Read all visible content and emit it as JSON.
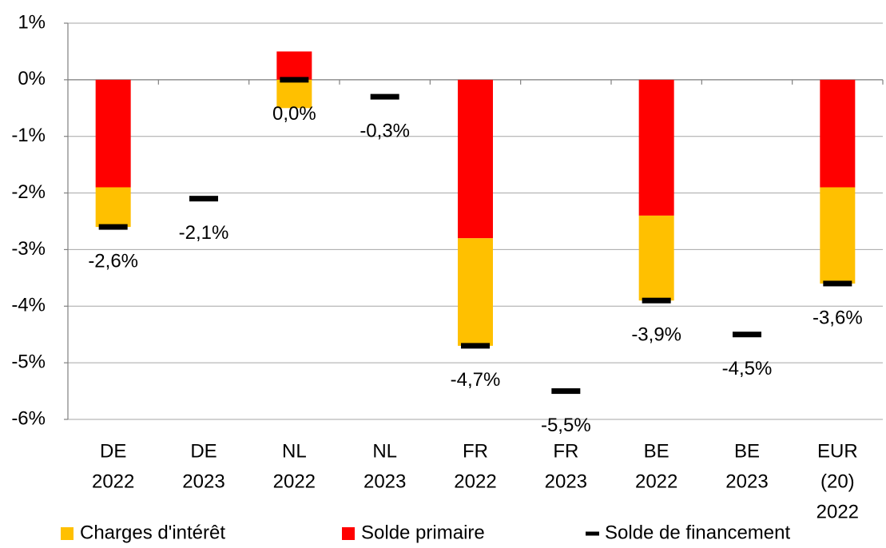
{
  "chart_data": {
    "type": "bar",
    "categories": [
      [
        "DE",
        "2022"
      ],
      [
        "DE",
        "2023"
      ],
      [
        "NL",
        "2022"
      ],
      [
        "NL",
        "2023"
      ],
      [
        "FR",
        "2022"
      ],
      [
        "FR",
        "2023"
      ],
      [
        "BE",
        "2022"
      ],
      [
        "BE",
        "2023"
      ],
      [
        "EUR",
        "(20)",
        "2022"
      ]
    ],
    "series": [
      {
        "name": "Charges d'intérêt",
        "color": "#ffc000",
        "values": [
          -0.7,
          null,
          -0.5,
          null,
          -1.9,
          null,
          -1.5,
          null,
          -1.7
        ]
      },
      {
        "name": "Solde primaire",
        "color": "#ff0000",
        "values": [
          -1.9,
          null,
          0.5,
          null,
          -2.8,
          null,
          -2.4,
          null,
          -1.9
        ]
      },
      {
        "name": "Solde de financement",
        "color": "#000000",
        "values": [
          -2.6,
          -2.1,
          0.0,
          -0.3,
          -4.7,
          -5.5,
          -3.9,
          -4.5,
          -3.6
        ],
        "value_labels": [
          "-2,6%",
          "-2,1%",
          "0,0%",
          "-0,3%",
          "-4,7%",
          "-5,5%",
          "-3,9%",
          "-4,5%",
          "-3,6%"
        ]
      }
    ],
    "ylim": [
      -6,
      1
    ],
    "yticks": [
      {
        "value": 1,
        "label": "1%"
      },
      {
        "value": 0,
        "label": "0%"
      },
      {
        "value": -1,
        "label": "-1%"
      },
      {
        "value": -2,
        "label": "-2%"
      },
      {
        "value": -3,
        "label": "-3%"
      },
      {
        "value": -4,
        "label": "-4%"
      },
      {
        "value": -5,
        "label": "-5%"
      },
      {
        "value": -6,
        "label": "-6%"
      }
    ],
    "grid": true,
    "legend": "bottom"
  }
}
